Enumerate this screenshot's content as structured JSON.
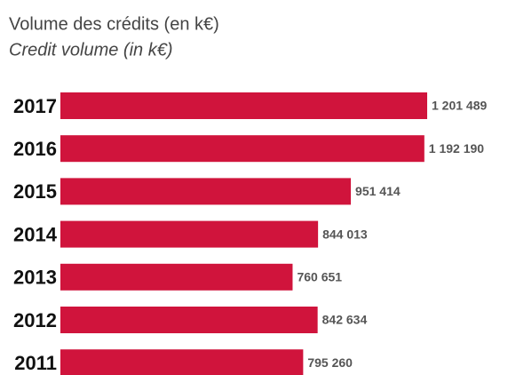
{
  "chart_data": {
    "type": "bar",
    "orientation": "horizontal",
    "title": "Volume des crédits (en k€)",
    "subtitle": "Credit volume (in k€)",
    "categories": [
      "2017",
      "2016",
      "2015",
      "2014",
      "2013",
      "2012",
      "2011"
    ],
    "values": [
      1201489,
      1192190,
      951414,
      844013,
      760651,
      842634,
      795260
    ],
    "value_labels": [
      "1 201 489",
      "1 192 190",
      "951 414",
      "844 013",
      "760 651",
      "842 634",
      "795 260"
    ],
    "color": "#d0143c"
  }
}
